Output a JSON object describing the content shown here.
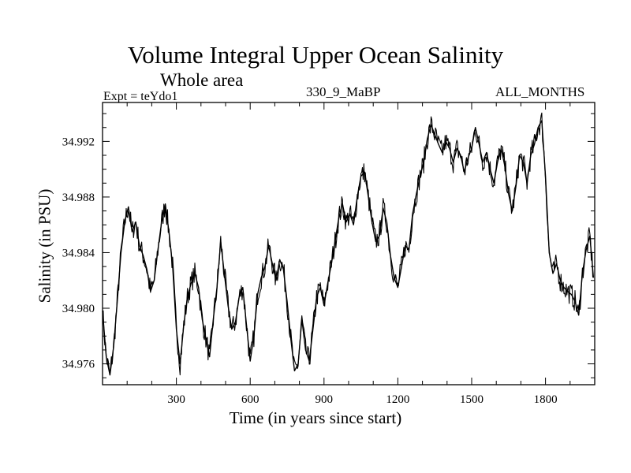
{
  "chart_data": {
    "type": "line",
    "title": "Volume Integral Upper Ocean Salinity",
    "subtitle": "Whole area",
    "experiment_label": "Expt = teYdo1",
    "run_label": "330_9_MaBP",
    "months_label": "ALL_MONTHS",
    "xlabel": "Time (in years since start)",
    "ylabel": "Salinity (in PSU)",
    "xlim": [
      0,
      2000
    ],
    "ylim": [
      34.9745,
      34.9948
    ],
    "xticks": [
      300,
      600,
      900,
      1200,
      1500,
      1800
    ],
    "yticks": [
      34.976,
      34.98,
      34.984,
      34.988,
      34.992
    ],
    "ytick_labels": [
      "34.976",
      "34.980",
      "34.984",
      "34.988",
      "34.992"
    ],
    "line_color": "#000000",
    "series": [
      {
        "name": "Salinity",
        "x": [
          0,
          15,
          30,
          45,
          60,
          75,
          90,
          105,
          120,
          135,
          150,
          165,
          180,
          195,
          210,
          225,
          240,
          255,
          270,
          285,
          300,
          315,
          330,
          345,
          360,
          375,
          390,
          405,
          420,
          435,
          450,
          465,
          480,
          495,
          510,
          525,
          540,
          555,
          570,
          585,
          600,
          615,
          630,
          645,
          660,
          675,
          690,
          705,
          720,
          735,
          750,
          765,
          780,
          795,
          810,
          825,
          840,
          855,
          870,
          885,
          900,
          915,
          930,
          945,
          960,
          975,
          990,
          1005,
          1020,
          1035,
          1050,
          1065,
          1080,
          1095,
          1110,
          1125,
          1140,
          1155,
          1170,
          1185,
          1200,
          1215,
          1230,
          1245,
          1260,
          1275,
          1290,
          1305,
          1320,
          1335,
          1350,
          1365,
          1380,
          1395,
          1410,
          1425,
          1440,
          1455,
          1470,
          1485,
          1500,
          1515,
          1530,
          1545,
          1560,
          1575,
          1590,
          1605,
          1620,
          1635,
          1650,
          1665,
          1680,
          1695,
          1710,
          1725,
          1740,
          1755,
          1770,
          1785,
          1800,
          1815,
          1830,
          1845,
          1860,
          1875,
          1890,
          1905,
          1920,
          1935,
          1950,
          1965,
          1980,
          1995
        ],
        "values": [
          34.9798,
          34.9765,
          34.9752,
          34.9772,
          34.9805,
          34.984,
          34.9862,
          34.9873,
          34.9855,
          34.9862,
          34.9845,
          34.9838,
          34.9828,
          34.9812,
          34.982,
          34.9842,
          34.9862,
          34.9875,
          34.9855,
          34.983,
          34.9785,
          34.976,
          34.9788,
          34.9808,
          34.9818,
          34.9825,
          34.9815,
          34.9792,
          34.9778,
          34.9765,
          34.9792,
          34.9815,
          34.9848,
          34.9825,
          34.9802,
          34.9785,
          34.979,
          34.9808,
          34.9815,
          34.9788,
          34.9762,
          34.978,
          34.981,
          34.9822,
          34.983,
          34.9845,
          34.9832,
          34.982,
          34.9835,
          34.9828,
          34.9805,
          34.9778,
          34.9755,
          34.976,
          34.9792,
          34.977,
          34.9762,
          34.9785,
          34.9808,
          34.9815,
          34.9802,
          34.9818,
          34.9832,
          34.9848,
          34.9865,
          34.9875,
          34.9862,
          34.9868,
          34.986,
          34.988,
          34.9895,
          34.9898,
          34.988,
          34.9862,
          34.9848,
          34.9852,
          34.9872,
          34.9862,
          34.9838,
          34.9822,
          34.9815,
          34.983,
          34.9845,
          34.9842,
          34.9868,
          34.9882,
          34.9895,
          34.9905,
          34.9922,
          34.9932,
          34.9925,
          34.9918,
          34.9912,
          34.992,
          34.9915,
          34.9905,
          34.9915,
          34.991,
          34.9898,
          34.9908,
          34.9915,
          34.993,
          34.9918,
          34.9905,
          34.9912,
          34.99,
          34.989,
          34.9905,
          34.9915,
          34.9902,
          34.9882,
          34.987,
          34.9888,
          34.991,
          34.9905,
          34.989,
          34.991,
          34.9918,
          34.993,
          34.9935,
          34.9895,
          34.984,
          34.9825,
          34.9832,
          34.982,
          34.9815,
          34.9812,
          34.981,
          34.9805,
          34.9795,
          34.9825,
          34.9842,
          34.9852,
          34.9822
        ]
      }
    ]
  }
}
